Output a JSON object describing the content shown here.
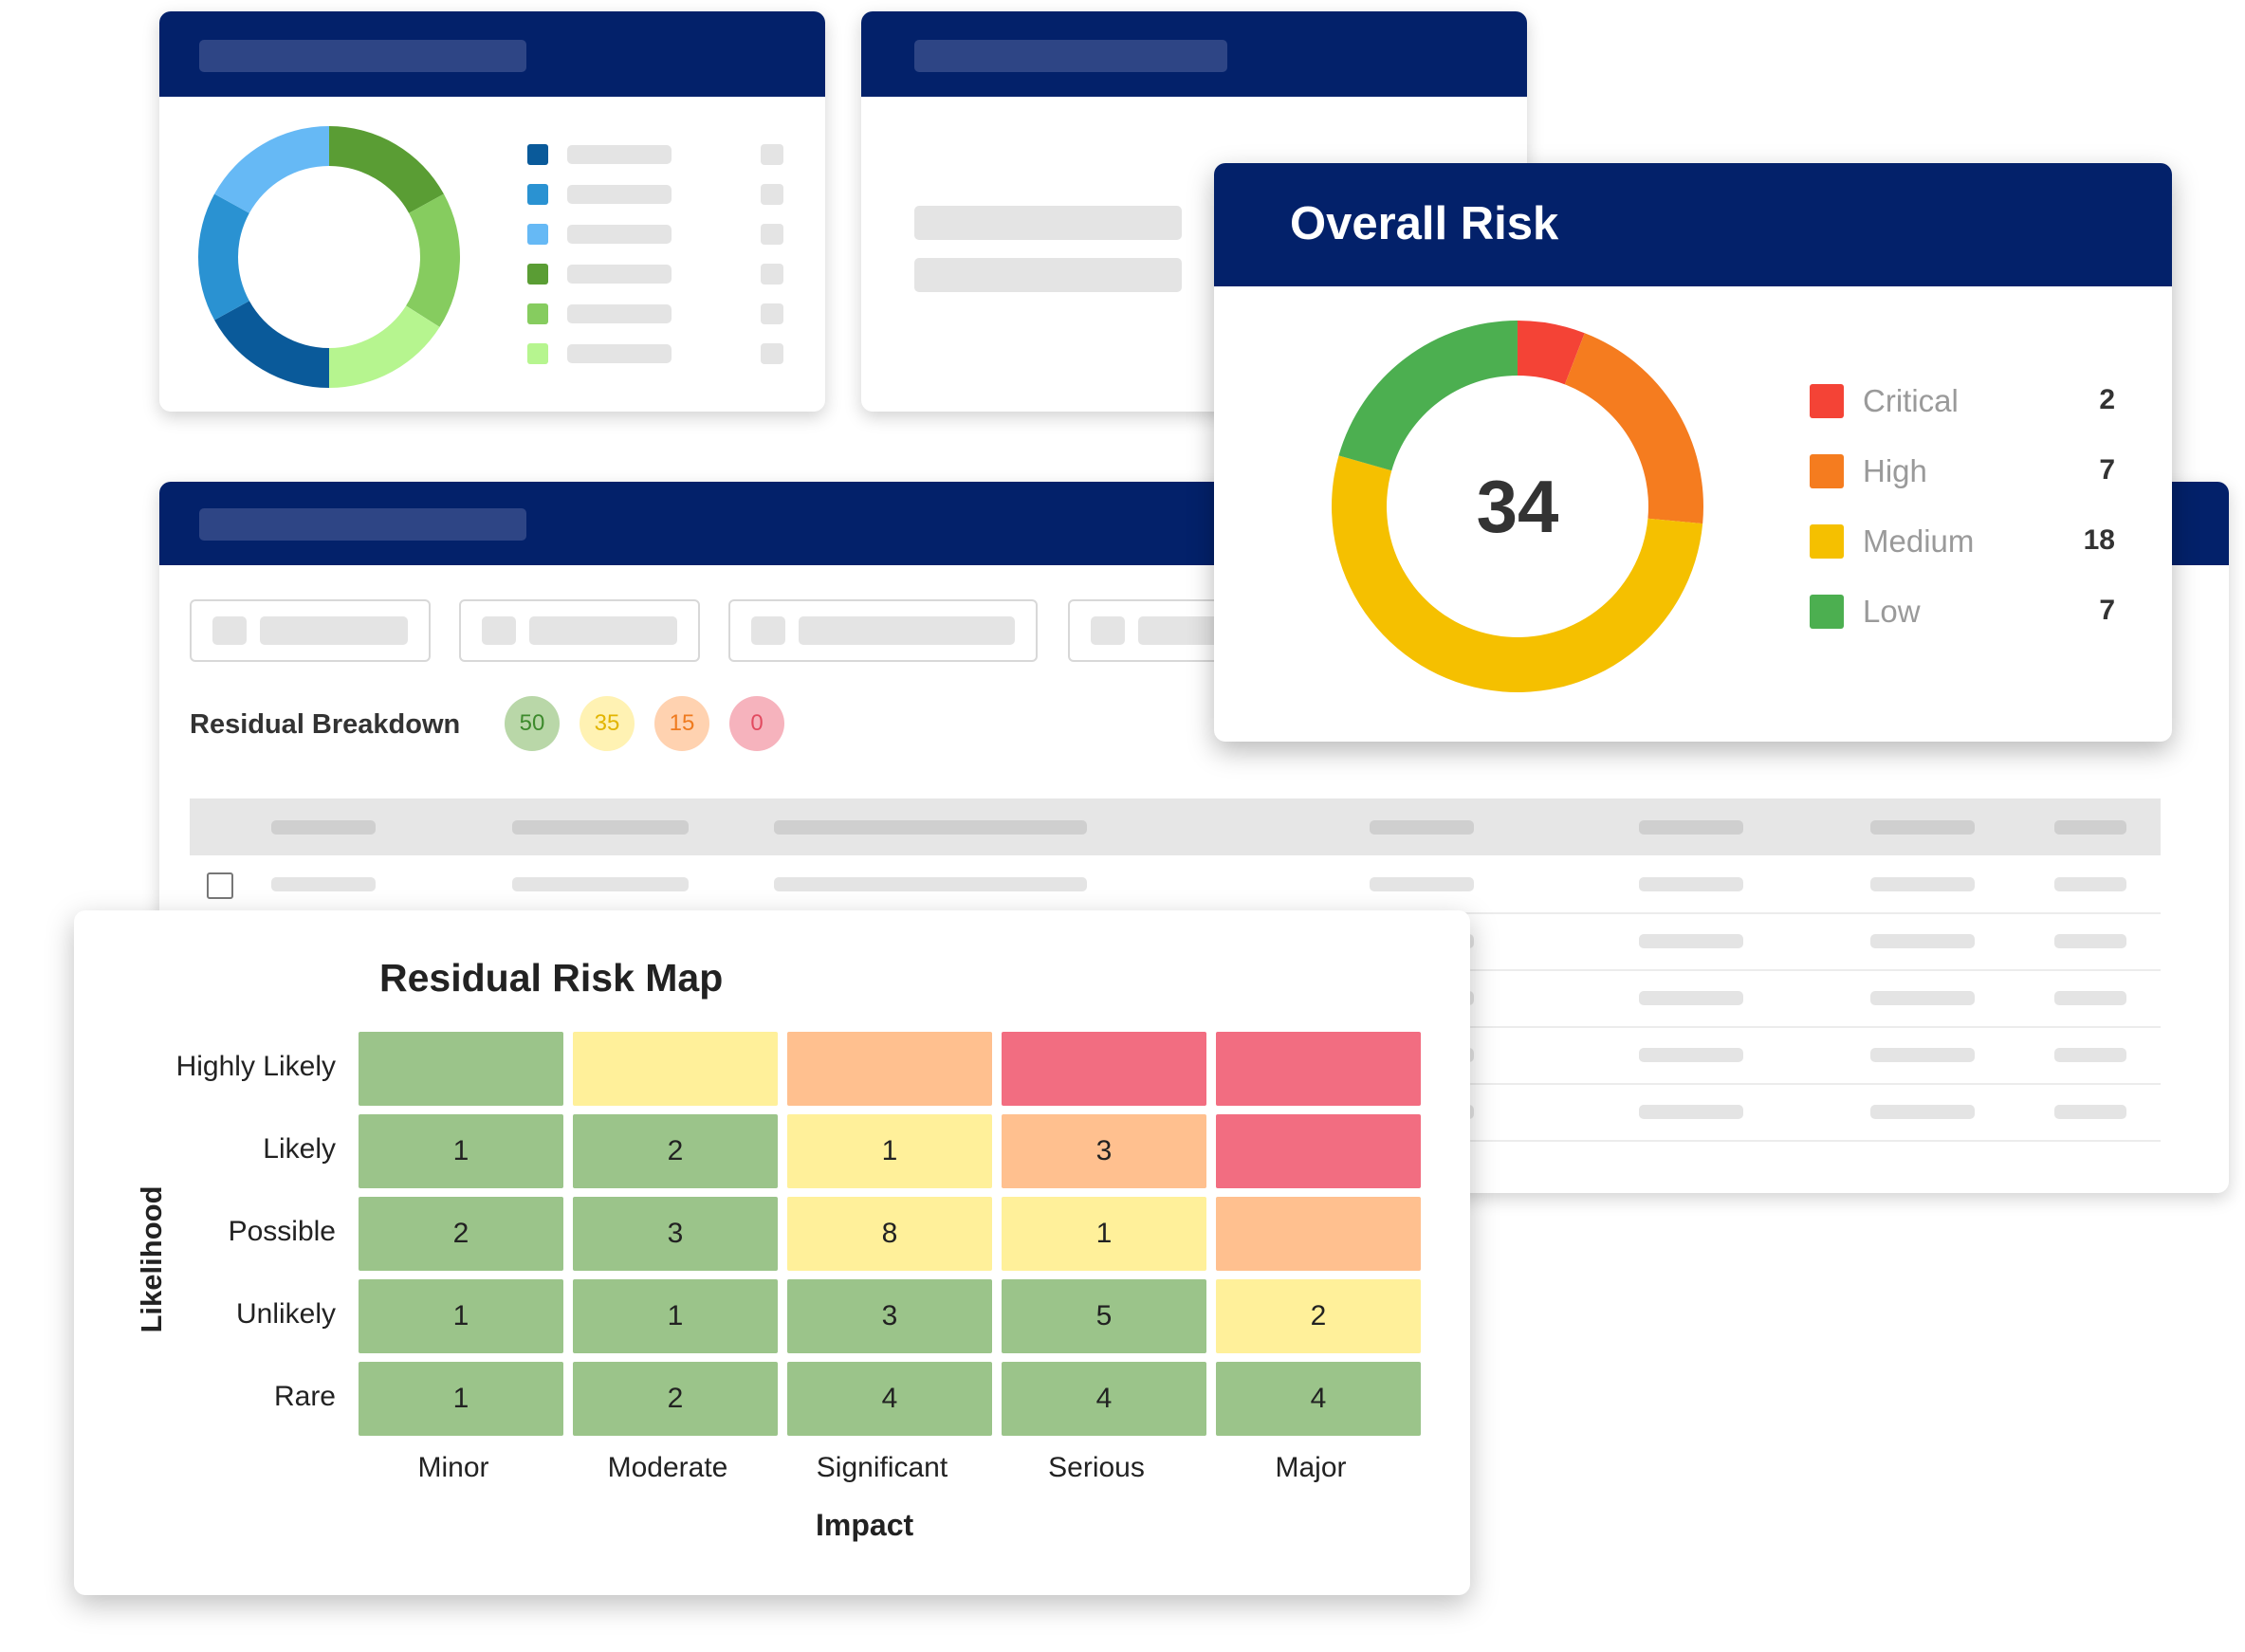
{
  "colors": {
    "navy": "#03216a",
    "critical": "#f44336",
    "high": "#f57c1f",
    "medium": "#f5c000",
    "low": "#4caf50",
    "map_green": "#9bc48a",
    "map_yellow": "#fff09a",
    "map_orange": "#ffc08f",
    "map_red": "#f26d81"
  },
  "residual_breakdown": {
    "label": "Residual Breakdown",
    "badges": [
      {
        "value": "50",
        "bg": "#b9d7a8",
        "fg": "#3d8a2c"
      },
      {
        "value": "35",
        "bg": "#fff2b3",
        "fg": "#e2b400"
      },
      {
        "value": "15",
        "bg": "#ffd2b0",
        "fg": "#ef7b1f"
      },
      {
        "value": "0",
        "bg": "#f6b3bd",
        "fg": "#e24b60"
      }
    ]
  },
  "overall_risk": {
    "title": "Overall Risk",
    "total": "34",
    "items": [
      {
        "label": "Critical",
        "value": "2",
        "color": "#f44336"
      },
      {
        "label": "High",
        "value": "7",
        "color": "#f57c1f"
      },
      {
        "label": "Medium",
        "value": "18",
        "color": "#f5c000"
      },
      {
        "label": "Low",
        "value": "7",
        "color": "#4caf50"
      }
    ]
  },
  "risk_map": {
    "title": "Residual Risk Map",
    "y_axis_label": "Likelihood",
    "x_axis_label": "Impact",
    "rows": [
      "Highly Likely",
      "Likely",
      "Possible",
      "Unlikely",
      "Rare"
    ],
    "columns": [
      "Minor",
      "Moderate",
      "Significant",
      "Serious",
      "Major"
    ],
    "cells": [
      [
        {
          "v": "",
          "c": "g"
        },
        {
          "v": "",
          "c": "y"
        },
        {
          "v": "",
          "c": "o"
        },
        {
          "v": "",
          "c": "r"
        },
        {
          "v": "",
          "c": "r"
        }
      ],
      [
        {
          "v": "1",
          "c": "g"
        },
        {
          "v": "2",
          "c": "g"
        },
        {
          "v": "1",
          "c": "y"
        },
        {
          "v": "3",
          "c": "o"
        },
        {
          "v": "",
          "c": "r"
        }
      ],
      [
        {
          "v": "2",
          "c": "g"
        },
        {
          "v": "3",
          "c": "g"
        },
        {
          "v": "8",
          "c": "y"
        },
        {
          "v": "1",
          "c": "y"
        },
        {
          "v": "",
          "c": "o"
        }
      ],
      [
        {
          "v": "1",
          "c": "g"
        },
        {
          "v": "1",
          "c": "g"
        },
        {
          "v": "3",
          "c": "g"
        },
        {
          "v": "5",
          "c": "g"
        },
        {
          "v": "2",
          "c": "y"
        }
      ],
      [
        {
          "v": "1",
          "c": "g"
        },
        {
          "v": "2",
          "c": "g"
        },
        {
          "v": "4",
          "c": "g"
        },
        {
          "v": "4",
          "c": "g"
        },
        {
          "v": "4",
          "c": "g"
        }
      ]
    ]
  },
  "category_donut": {
    "segments": [
      {
        "share": 0.17,
        "color": "#5a9d34"
      },
      {
        "share": 0.17,
        "color": "#86cc5f"
      },
      {
        "share": 0.16,
        "color": "#b6f58f"
      },
      {
        "share": 0.17,
        "color": "#0a5a9a"
      },
      {
        "share": 0.16,
        "color": "#2a92d2"
      },
      {
        "share": 0.17,
        "color": "#66b9f5"
      }
    ],
    "legend_colors": [
      "#0a5a9a",
      "#2a92d2",
      "#66b9f5",
      "#5a9d34",
      "#86cc5f",
      "#b6f58f"
    ]
  },
  "chart_data": {
    "type": "pie",
    "title": "Overall Risk",
    "categories": [
      "Critical",
      "High",
      "Medium",
      "Low"
    ],
    "values": [
      2,
      7,
      18,
      7
    ],
    "total": 34
  }
}
